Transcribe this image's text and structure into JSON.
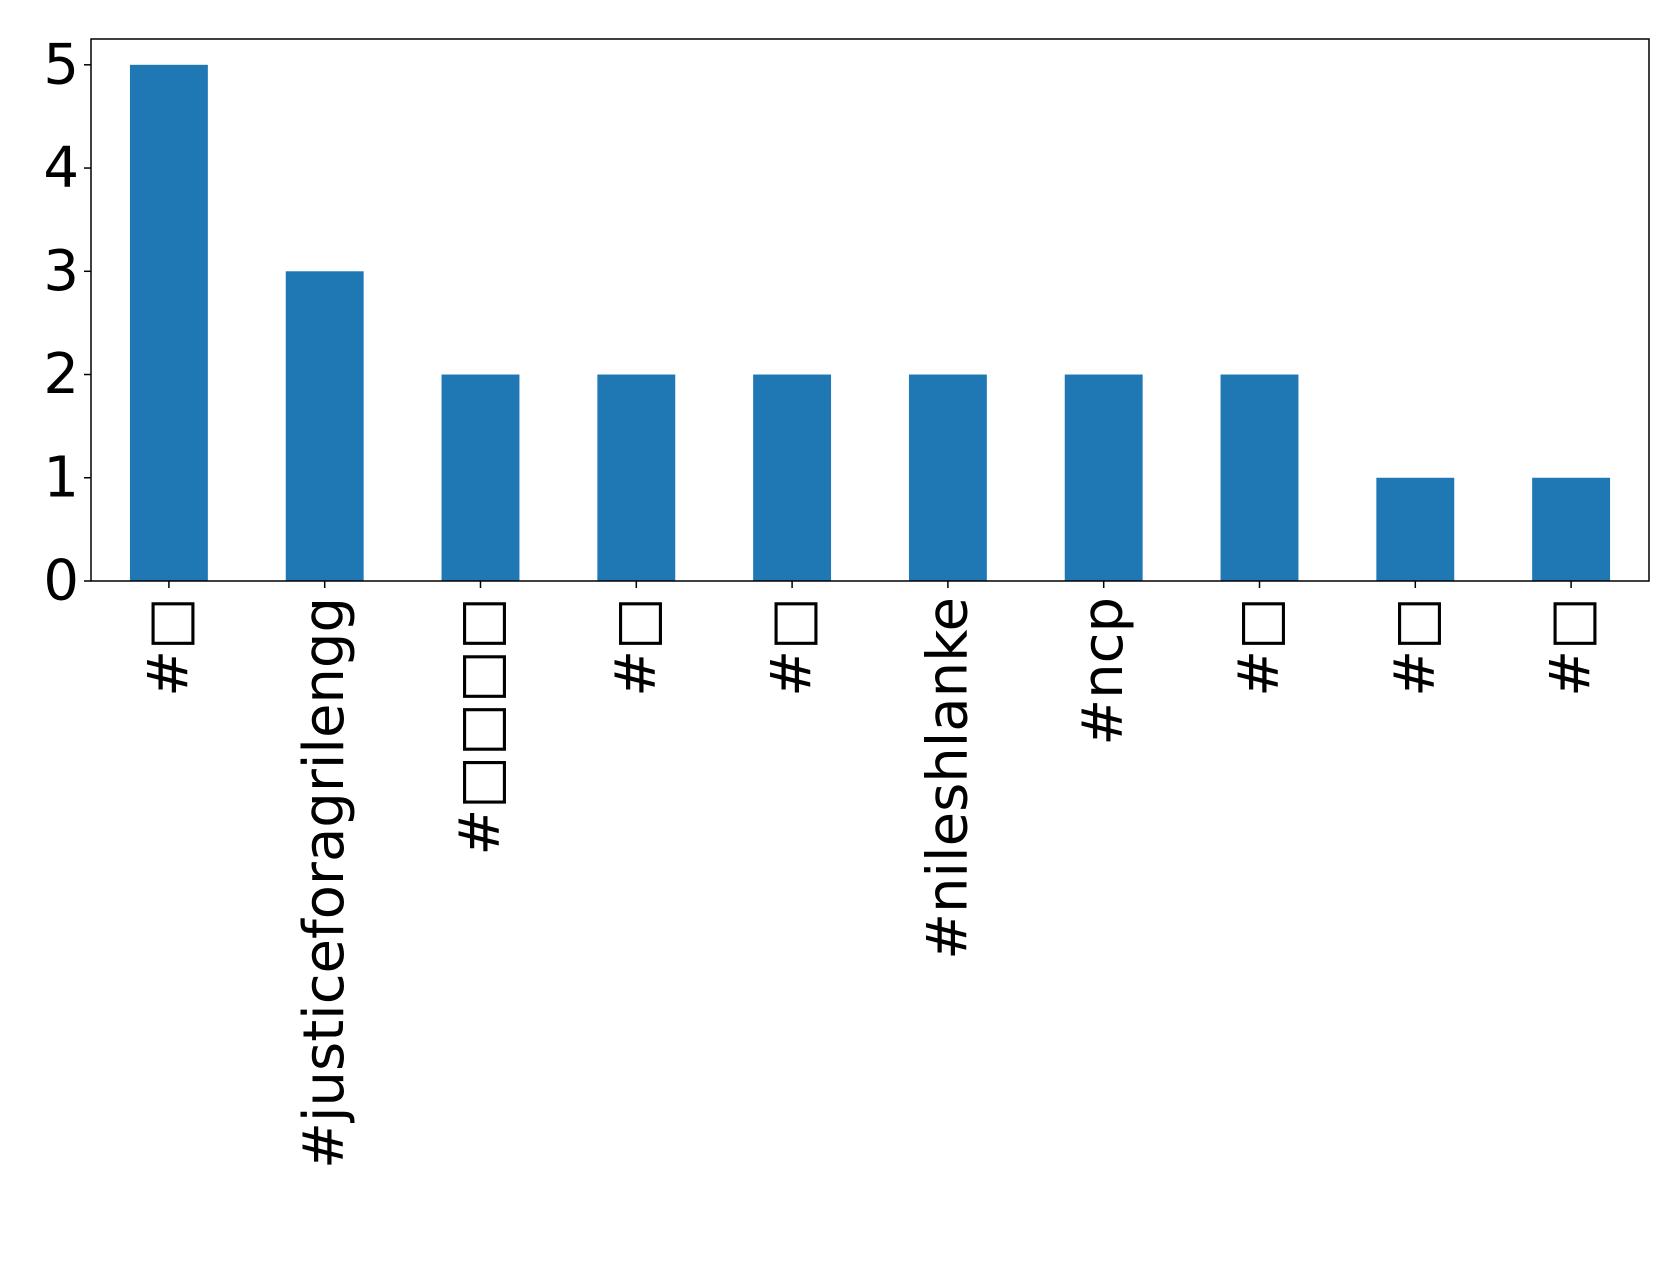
{
  "chart_data": {
    "type": "bar",
    "title": "",
    "xlabel": "",
    "ylabel": "",
    "categories": [
      "#□",
      "#justiceforagrilengg",
      "#□□□□",
      "#□",
      "#□",
      "#nileshlanke",
      "#ncp",
      "#□",
      "#□",
      "#□"
    ],
    "values": [
      5,
      3,
      2,
      2,
      2,
      2,
      2,
      2,
      1,
      1
    ],
    "ylim": [
      0,
      5.25
    ],
    "yticks": [
      0,
      1,
      2,
      3,
      4,
      5
    ],
    "grid": false,
    "legend": "none",
    "bar_color": "#1f77b4",
    "axis_color": "#000000"
  }
}
